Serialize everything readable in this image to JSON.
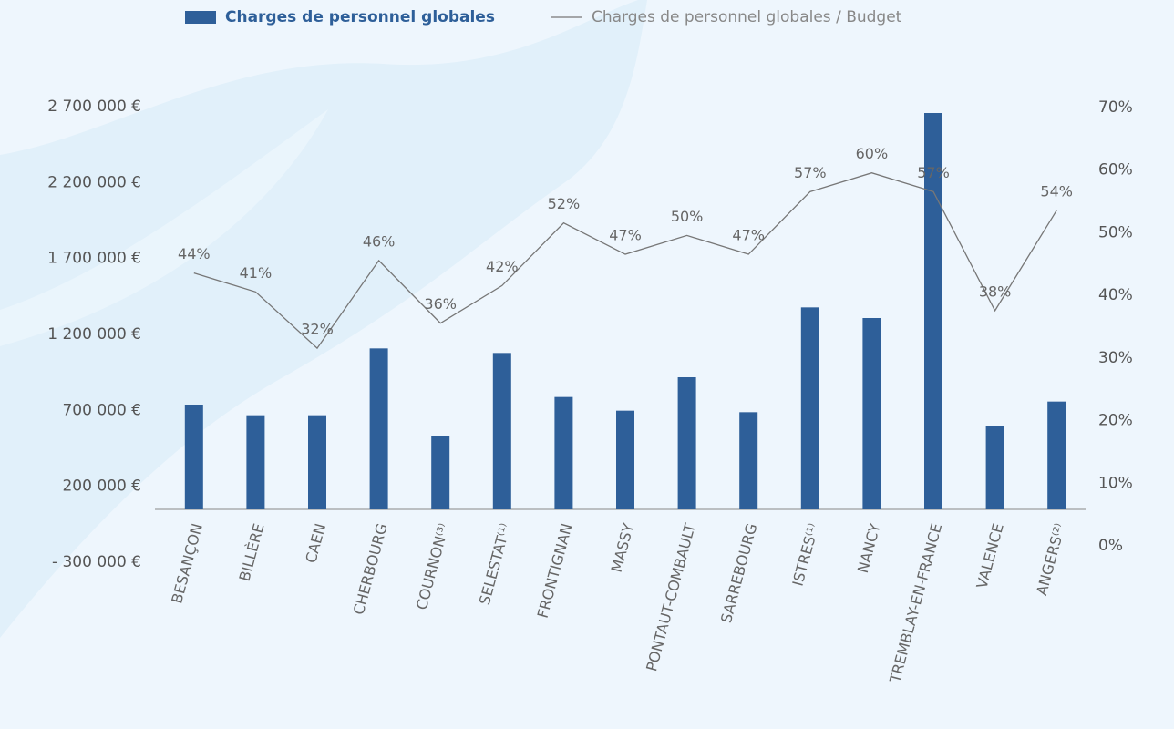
{
  "chart_data": {
    "type": "bar",
    "categories": [
      "BESANÇON",
      "BILLÈRE",
      "CAEN",
      "CHERBOURG",
      "COURNON⁽³⁾",
      "SELESTAT⁽¹⁾",
      "FRONTIGNAN",
      "MASSY",
      "PONTAUT-COMBAULT",
      "SARREBOURG",
      "ISTRES⁽¹⁾",
      "NANCY",
      "TREMBLAY-EN-FRANCE",
      "VALENCE",
      "ANGERS⁽²⁾"
    ],
    "series": [
      {
        "name": "Charges de personnel globales",
        "color": "#2e5f99",
        "values": [
          690000,
          620000,
          620000,
          1060000,
          480000,
          1030000,
          740000,
          650000,
          870000,
          640000,
          1330000,
          1260000,
          2610000,
          550000,
          710000
        ]
      },
      {
        "name": "Charges de personnel globales / Budget",
        "color": "#777777",
        "type": "line",
        "axis": "y2",
        "values": [
          44,
          41,
          32,
          46,
          36,
          42,
          52,
          47,
          50,
          47,
          57,
          60,
          57,
          38,
          54
        ],
        "value_labels": [
          "44%",
          "41%",
          "32%",
          "46%",
          "36%",
          "42%",
          "52%",
          "47%",
          "50%",
          "47%",
          "57%",
          "60%",
          "57%",
          "38%",
          "54%"
        ]
      }
    ],
    "ylim": [
      -300000,
      2700000
    ],
    "yticks": [
      {
        "value": -300000,
        "label": "- 300 000 €"
      },
      {
        "value": 200000,
        "label": "200 000 €"
      },
      {
        "value": 700000,
        "label": "700 000 €"
      },
      {
        "value": 1200000,
        "label": "1 200 000 €"
      },
      {
        "value": 1700000,
        "label": "1 700 000 €"
      },
      {
        "value": 2200000,
        "label": "2 200 000 €"
      },
      {
        "value": 2700000,
        "label": "2 700 000 €"
      }
    ],
    "y2lim": [
      0,
      70
    ],
    "y2ticks": [
      {
        "value": 0,
        "label": "0%"
      },
      {
        "value": 10,
        "label": "10%"
      },
      {
        "value": 20,
        "label": "20%"
      },
      {
        "value": 30,
        "label": "30%"
      },
      {
        "value": 40,
        "label": "40%"
      },
      {
        "value": 50,
        "label": "50%"
      },
      {
        "value": 60,
        "label": "60%"
      },
      {
        "value": 70,
        "label": "70%"
      }
    ],
    "legend": "top"
  }
}
